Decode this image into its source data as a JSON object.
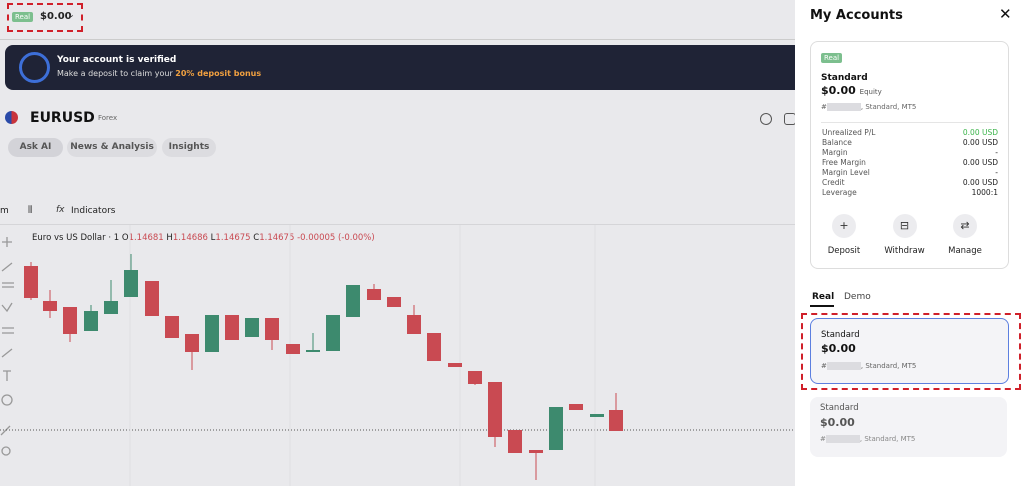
{
  "header": {
    "account_badge": "Real",
    "balance": "$0.00"
  },
  "banner": {
    "title": "Your account is verified",
    "text": "Make a deposit to claim your",
    "bonus": "20% deposit bonus"
  },
  "instrument": {
    "symbol": "EURUSD",
    "market": "Forex"
  },
  "tabs": [
    "Ask AI",
    "News & Analysis",
    "Insights"
  ],
  "chart_toolbar": {
    "interval": "m",
    "indicators": "Indicators"
  },
  "chart_legend": {
    "title": "Euro vs US Dollar · 1",
    "o_label": "O",
    "o": "1.14681",
    "h_label": "H",
    "h": "1.14686",
    "l_label": "L",
    "l": "1.14675",
    "c_label": "C",
    "c": "1.14675",
    "change": "-0.00005 (-0.00%)"
  },
  "panel": {
    "title": "My Accounts",
    "card": {
      "badge": "Real",
      "name": "Standard",
      "amount": "$0.00",
      "amount_label": "Equity",
      "account_prefix": "#",
      "account_suffix": ", Standard, MT5",
      "rows": [
        [
          "Unrealized P/L",
          "0.00 USD"
        ],
        [
          "Balance",
          "0.00 USD"
        ],
        [
          "Margin",
          "-"
        ],
        [
          "Free Margin",
          "0.00 USD"
        ],
        [
          "Margin Level",
          "-"
        ],
        [
          "Credit",
          "0.00 USD"
        ],
        [
          "Leverage",
          "1000:1"
        ]
      ],
      "actions": [
        "Deposit",
        "Withdraw",
        "Manage"
      ]
    },
    "tabs": [
      "Real",
      "Demo"
    ],
    "accounts": [
      {
        "name": "Standard",
        "amount": "$0.00",
        "account_prefix": "#",
        "account_suffix": ", Standard, MT5"
      },
      {
        "name": "Standard",
        "amount": "$0.00",
        "account_prefix": "#",
        "account_suffix": ", Standard, MT5"
      }
    ]
  }
}
